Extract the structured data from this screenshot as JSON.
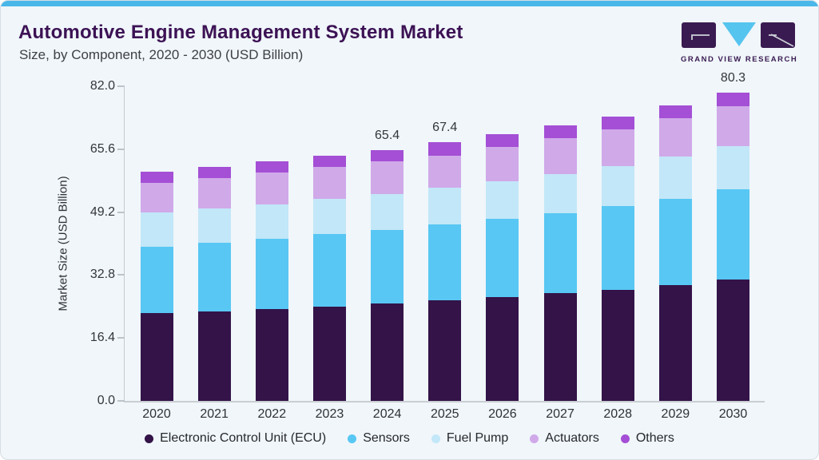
{
  "header": {
    "title": "Automotive Engine Management System Market",
    "subtitle": "Size, by Component, 2020 - 2030 (USD Billion)"
  },
  "logo": {
    "text": "GRAND VIEW RESEARCH",
    "purple": "#3a1b51",
    "cyan": "#55c4ef"
  },
  "colors": {
    "accent_stripe": "#4ab7e9",
    "title": "#3c1254",
    "background": "#f0f6fa",
    "axis_line": "#c3c9ce"
  },
  "chart_data": {
    "type": "bar",
    "stacked": true,
    "categories": [
      "2020",
      "2021",
      "2022",
      "2023",
      "2024",
      "2025",
      "2026",
      "2027",
      "2028",
      "2029",
      "2030"
    ],
    "series": [
      {
        "name": "Electronic Control Unit (ECU)",
        "color": "#331348",
        "values": [
          22.9,
          23.4,
          23.9,
          24.6,
          25.3,
          26.3,
          27.1,
          28.0,
          28.9,
          30.2,
          31.7
        ]
      },
      {
        "name": "Sensors",
        "color": "#58c7f3",
        "values": [
          17.2,
          17.8,
          18.3,
          18.8,
          19.2,
          19.6,
          20.3,
          21.0,
          21.8,
          22.5,
          23.5
        ]
      },
      {
        "name": "Fuel Pump",
        "color": "#c2e7f8",
        "values": [
          9.1,
          9.0,
          9.1,
          9.2,
          9.5,
          9.6,
          9.9,
          10.1,
          10.4,
          10.9,
          11.1
        ]
      },
      {
        "name": "Actuators",
        "color": "#d0a9e9",
        "values": [
          7.7,
          7.9,
          8.2,
          8.3,
          8.4,
          8.5,
          8.8,
          9.3,
          9.7,
          10.1,
          10.5
        ]
      },
      {
        "name": "Others",
        "color": "#a44fd5",
        "values": [
          2.8,
          2.9,
          2.9,
          3.0,
          3.0,
          3.4,
          3.5,
          3.4,
          3.4,
          3.4,
          3.5
        ]
      }
    ],
    "total_labels": {
      "2024": "65.4",
      "2025": "67.4",
      "2030": "80.3"
    },
    "ylabel": "Market Size (USD Billion)",
    "ylim": [
      0,
      82
    ],
    "yticks": [
      0.0,
      16.4,
      32.8,
      49.2,
      65.6,
      82.0
    ],
    "ytick_labels": [
      "0.0",
      "16.4",
      "32.8",
      "49.2",
      "65.6",
      "82.0"
    ],
    "grid": false,
    "legend_position": "bottom"
  }
}
